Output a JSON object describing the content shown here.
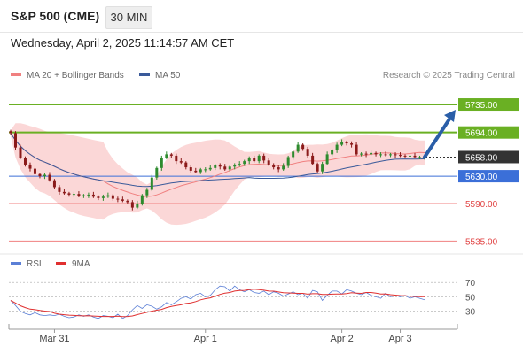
{
  "header": {
    "title": "S&P 500 (CME)",
    "timeframe": "30 MIN"
  },
  "datetime": "Wednesday, April 2, 2025 11:14:57 AM CET",
  "legend": {
    "ma20_label": "MA 20 + Bollinger Bands",
    "ma50_label": "MA 50",
    "copyright": "Research © 2025 Trading Central"
  },
  "rsi_legend": {
    "rsi_label": "RSI",
    "ma9_label": "9MA"
  },
  "colors": {
    "bull": "#2e8b2e",
    "bear": "#8b1a1a",
    "bollinger": "#f9c9c9",
    "ma20": "#f08080",
    "ma50": "#3a5a9a",
    "resistance": "#6ab023",
    "pivot": "#3b6fd8",
    "support": "#f08080",
    "current": "#333333",
    "arrow": "#2a5ea8",
    "rsi": "#5b7fd6",
    "rsi_ma": "#e03030"
  },
  "chart_data": {
    "type": "candlestick",
    "price_levels": [
      {
        "label": "5735.00",
        "value": 5735,
        "kind": "resistance"
      },
      {
        "label": "5694.00",
        "value": 5694,
        "kind": "resistance"
      },
      {
        "label": "5658.00",
        "value": 5658,
        "kind": "current"
      },
      {
        "label": "5630.00",
        "value": 5630,
        "kind": "pivot"
      },
      {
        "label": "5590.00",
        "value": 5590,
        "kind": "support"
      },
      {
        "label": "5535.00",
        "value": 5535,
        "kind": "support"
      }
    ],
    "y_range": [
      5520,
      5748
    ],
    "x_labels": [
      "Mar 31",
      "Apr 1",
      "Apr 2",
      "Apr 3"
    ],
    "x_label_positions": [
      9,
      40,
      68,
      80
    ],
    "bar_count": 86,
    "price": [
      5693,
      5672,
      5657,
      5647,
      5641,
      5633,
      5630,
      5632,
      5624,
      5614,
      5607,
      5605,
      5603,
      5604,
      5601,
      5602,
      5603,
      5600,
      5598,
      5600,
      5602,
      5597,
      5596,
      5594,
      5592,
      5584,
      5590,
      5602,
      5610,
      5628,
      5642,
      5657,
      5662,
      5660,
      5652,
      5650,
      5643,
      5638,
      5636,
      5640,
      5640,
      5642,
      5646,
      5644,
      5640,
      5644,
      5646,
      5648,
      5652,
      5656,
      5652,
      5660,
      5653,
      5647,
      5643,
      5640,
      5645,
      5658,
      5666,
      5676,
      5670,
      5660,
      5648,
      5637,
      5648,
      5662,
      5668,
      5676,
      5680,
      5678,
      5676,
      5662,
      5663,
      5662,
      5664,
      5662,
      5662,
      5661,
      5662,
      5661,
      5660,
      5659,
      5660,
      5658,
      5658,
      5658
    ],
    "forecast_target": 5735,
    "rsi": {
      "levels": [
        70,
        50,
        30
      ],
      "y_range": [
        10,
        80
      ],
      "values": [
        45,
        38,
        30,
        27,
        25,
        28,
        25,
        24,
        25,
        24,
        26,
        23,
        21,
        22,
        25,
        23,
        25,
        22,
        20,
        24,
        23,
        21,
        26,
        20,
        24,
        32,
        38,
        34,
        39,
        37,
        33,
        36,
        42,
        39,
        43,
        48,
        50,
        47,
        53,
        55,
        50,
        52,
        60,
        65,
        64,
        58,
        65,
        60,
        57,
        60,
        56,
        55,
        58,
        53,
        57,
        55,
        51,
        54,
        57,
        53,
        55,
        48,
        59,
        57,
        45,
        52,
        58,
        58,
        54,
        60,
        58,
        55,
        53,
        56,
        52,
        50,
        48,
        55,
        50,
        52,
        50,
        52,
        48,
        50,
        48,
        46
      ]
    }
  }
}
